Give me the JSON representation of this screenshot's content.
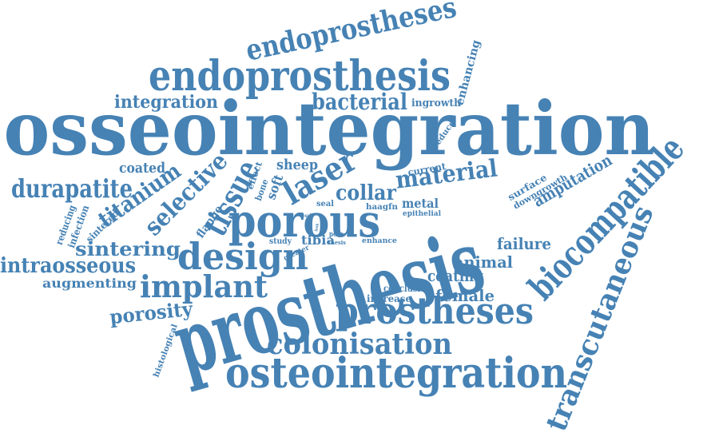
{
  "word_color": "#4682b4",
  "words": [
    "endoprostheses",
    "endoprosthesis",
    "integration",
    "bacterial",
    "ingrowth",
    "enhancing",
    "osseointegration",
    "reduce",
    "biocompatible",
    "coated",
    "titanium",
    "selective",
    "tissue",
    "effect",
    "bone",
    "soft",
    "sheep",
    "laser",
    "current",
    "material",
    "surface",
    "downgrowth",
    "amputation",
    "durapatite",
    "reducing",
    "infection",
    "sintered",
    "flange",
    "porous",
    "collar",
    "seal",
    "metal",
    "epithelial",
    "haagfn",
    "result",
    "look",
    "sintering",
    "design",
    "study",
    "tibia",
    "pore",
    "thesis",
    "enhance",
    "failure",
    "prosthesis",
    "intraosseous",
    "greater",
    "animal",
    "coating",
    "augmenting",
    "implant",
    "conclusion",
    "female",
    "increase",
    "transcutaneous",
    "porosity",
    "prostheses",
    "histological",
    "colonisation",
    "osteointegration"
  ]
}
